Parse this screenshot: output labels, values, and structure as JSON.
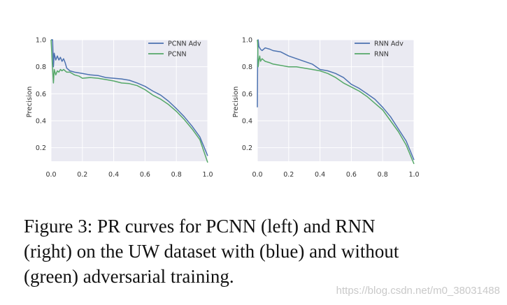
{
  "chart_data": [
    {
      "type": "line",
      "title": "",
      "xlabel": "",
      "ylabel": "Precision",
      "xlim": [
        0.0,
        1.0
      ],
      "ylim": [
        0.1,
        1.0
      ],
      "xticks": [
        "0.0",
        "0.2",
        "0.4",
        "0.6",
        "0.8",
        "1.0"
      ],
      "yticks": [
        "0.2",
        "0.4",
        "0.6",
        "0.8",
        "1.0"
      ],
      "grid": true,
      "legend_position": "top-right",
      "series": [
        {
          "name": "PCNN Adv",
          "color": "#4c72b0",
          "x": [
            0.0,
            0.01,
            0.015,
            0.02,
            0.03,
            0.04,
            0.05,
            0.06,
            0.07,
            0.08,
            0.09,
            0.1,
            0.12,
            0.15,
            0.2,
            0.25,
            0.3,
            0.35,
            0.4,
            0.45,
            0.5,
            0.55,
            0.6,
            0.65,
            0.7,
            0.75,
            0.8,
            0.85,
            0.9,
            0.95,
            1.0
          ],
          "y": [
            1.0,
            1.0,
            0.8,
            0.9,
            0.85,
            0.88,
            0.85,
            0.87,
            0.84,
            0.86,
            0.83,
            0.79,
            0.77,
            0.76,
            0.75,
            0.74,
            0.735,
            0.72,
            0.715,
            0.71,
            0.7,
            0.68,
            0.655,
            0.62,
            0.59,
            0.545,
            0.49,
            0.43,
            0.36,
            0.28,
            0.14
          ]
        },
        {
          "name": "PCNN",
          "color": "#55a868",
          "x": [
            0.0,
            0.01,
            0.015,
            0.02,
            0.03,
            0.04,
            0.05,
            0.06,
            0.07,
            0.08,
            0.1,
            0.12,
            0.15,
            0.18,
            0.2,
            0.25,
            0.3,
            0.35,
            0.4,
            0.45,
            0.5,
            0.55,
            0.6,
            0.65,
            0.7,
            0.75,
            0.8,
            0.85,
            0.9,
            0.95,
            1.0
          ],
          "y": [
            1.0,
            0.78,
            0.68,
            0.78,
            0.74,
            0.77,
            0.76,
            0.78,
            0.77,
            0.78,
            0.76,
            0.76,
            0.74,
            0.73,
            0.715,
            0.72,
            0.715,
            0.705,
            0.695,
            0.68,
            0.675,
            0.66,
            0.63,
            0.59,
            0.56,
            0.52,
            0.47,
            0.41,
            0.34,
            0.26,
            0.09
          ]
        }
      ]
    },
    {
      "type": "line",
      "title": "",
      "xlabel": "",
      "ylabel": "Precision",
      "xlim": [
        0.0,
        1.0
      ],
      "ylim": [
        0.1,
        1.0
      ],
      "xticks": [
        "0.0",
        "0.2",
        "0.4",
        "0.6",
        "0.8",
        "1.0"
      ],
      "yticks": [
        "0.2",
        "0.4",
        "0.6",
        "0.8",
        "1.0"
      ],
      "grid": true,
      "legend_position": "top-right",
      "series": [
        {
          "name": "RNN Adv",
          "color": "#4c72b0",
          "x": [
            0.0,
            0.002,
            0.005,
            0.01,
            0.02,
            0.03,
            0.05,
            0.08,
            0.1,
            0.15,
            0.2,
            0.25,
            0.3,
            0.35,
            0.4,
            0.45,
            0.5,
            0.55,
            0.6,
            0.65,
            0.7,
            0.75,
            0.8,
            0.85,
            0.9,
            0.95,
            1.0
          ],
          "y": [
            0.5,
            0.85,
            1.0,
            0.95,
            0.93,
            0.92,
            0.94,
            0.93,
            0.92,
            0.91,
            0.88,
            0.86,
            0.84,
            0.82,
            0.78,
            0.77,
            0.75,
            0.72,
            0.67,
            0.64,
            0.6,
            0.56,
            0.5,
            0.43,
            0.34,
            0.25,
            0.11
          ]
        },
        {
          "name": "RNN",
          "color": "#55a868",
          "x": [
            0.0,
            0.002,
            0.005,
            0.01,
            0.015,
            0.02,
            0.03,
            0.05,
            0.08,
            0.1,
            0.15,
            0.2,
            0.25,
            0.3,
            0.35,
            0.4,
            0.45,
            0.5,
            0.55,
            0.6,
            0.65,
            0.7,
            0.75,
            0.8,
            0.85,
            0.9,
            0.95,
            1.0
          ],
          "y": [
            1.0,
            0.98,
            0.8,
            0.85,
            0.88,
            0.84,
            0.86,
            0.84,
            0.83,
            0.82,
            0.81,
            0.8,
            0.8,
            0.79,
            0.78,
            0.77,
            0.75,
            0.72,
            0.68,
            0.65,
            0.62,
            0.58,
            0.53,
            0.48,
            0.4,
            0.32,
            0.22,
            0.08
          ]
        }
      ]
    }
  ],
  "caption": {
    "line1": "Figure 3:  PR curves for PCNN (left) and RNN",
    "line2": "(right) on the UW dataset with (blue) and without",
    "line3": "(green) adversarial training."
  },
  "watermark": "https://blog.csdn.net/m0_38031488"
}
